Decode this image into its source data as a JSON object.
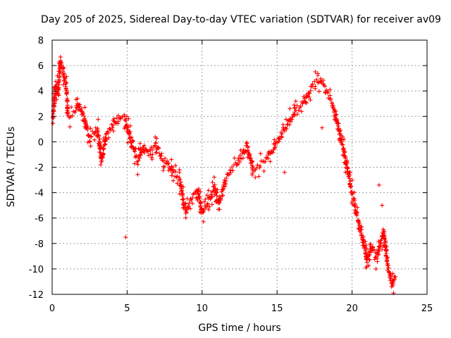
{
  "chart_data": {
    "type": "scatter",
    "title": "Day 205 of 2025, Sidereal Day-to-day VTEC variation (SDTVAR) for receiver av09",
    "xlabel": "GPS time / hours",
    "ylabel": "SDTVAR / TECUs",
    "xlim": [
      0,
      25
    ],
    "ylim": [
      -12,
      8
    ],
    "xticks": [
      "0",
      "5",
      "10",
      "15",
      "20",
      "25"
    ],
    "yticks": [
      "8",
      "6",
      "4",
      "2",
      "0",
      "-2",
      "-4",
      "-6",
      "-8",
      "-10",
      "-12"
    ],
    "grid": true,
    "marker": "+",
    "color": "#ff0000",
    "series": [
      {
        "name": "SDTVAR",
        "trend": [
          [
            0.05,
            2.0
          ],
          [
            0.25,
            4.6
          ],
          [
            0.4,
            3.8
          ],
          [
            0.55,
            6.2
          ],
          [
            0.75,
            5.5
          ],
          [
            0.95,
            4.2
          ],
          [
            1.05,
            2.0
          ],
          [
            1.5,
            2.4
          ],
          [
            1.8,
            3.0
          ],
          [
            2.1,
            2.0
          ],
          [
            2.5,
            0.3
          ],
          [
            3.0,
            1.0
          ],
          [
            3.3,
            -1.5
          ],
          [
            3.6,
            0.5
          ],
          [
            4.0,
            1.3
          ],
          [
            4.4,
            1.8
          ],
          [
            4.8,
            2.0
          ],
          [
            5.0,
            1.2
          ],
          [
            5.3,
            -0.3
          ],
          [
            5.7,
            -1.6
          ],
          [
            6.1,
            -0.3
          ],
          [
            6.4,
            -0.8
          ],
          [
            6.9,
            -0.2
          ],
          [
            7.3,
            -1.2
          ],
          [
            7.8,
            -1.8
          ],
          [
            8.1,
            -2.4
          ],
          [
            8.5,
            -3.0
          ],
          [
            8.9,
            -5.5
          ],
          [
            9.3,
            -4.5
          ],
          [
            9.7,
            -3.8
          ],
          [
            10.0,
            -5.7
          ],
          [
            10.4,
            -4.8
          ],
          [
            10.8,
            -3.5
          ],
          [
            11.1,
            -4.9
          ],
          [
            11.5,
            -3.2
          ],
          [
            11.9,
            -2.2
          ],
          [
            12.3,
            -1.8
          ],
          [
            12.7,
            -1.0
          ],
          [
            13.0,
            -0.3
          ],
          [
            13.4,
            -2.2
          ],
          [
            13.8,
            -1.8
          ],
          [
            14.2,
            -1.5
          ],
          [
            14.6,
            -0.8
          ],
          [
            15.0,
            0.0
          ],
          [
            15.4,
            0.8
          ],
          [
            15.8,
            1.5
          ],
          [
            16.2,
            2.5
          ],
          [
            16.6,
            2.8
          ],
          [
            17.0,
            3.5
          ],
          [
            17.4,
            4.5
          ],
          [
            17.8,
            4.8
          ],
          [
            18.2,
            4.2
          ],
          [
            18.6,
            3.3
          ],
          [
            18.9,
            2.0
          ],
          [
            19.2,
            0.5
          ],
          [
            19.6,
            -1.5
          ],
          [
            19.9,
            -3.5
          ],
          [
            20.2,
            -5.0
          ],
          [
            20.5,
            -6.5
          ],
          [
            20.8,
            -8.0
          ],
          [
            21.0,
            -9.5
          ],
          [
            21.3,
            -8.2
          ],
          [
            21.7,
            -9.0
          ],
          [
            22.1,
            -7.0
          ],
          [
            22.4,
            -9.8
          ],
          [
            22.7,
            -11.3
          ],
          [
            22.9,
            -10.5
          ]
        ],
        "outliers": [
          [
            4.9,
            -7.5
          ],
          [
            18.0,
            1.1
          ],
          [
            21.8,
            -3.4
          ],
          [
            22.0,
            -5.0
          ],
          [
            21.6,
            -10.0
          ],
          [
            15.5,
            -2.4
          ]
        ]
      }
    ]
  }
}
